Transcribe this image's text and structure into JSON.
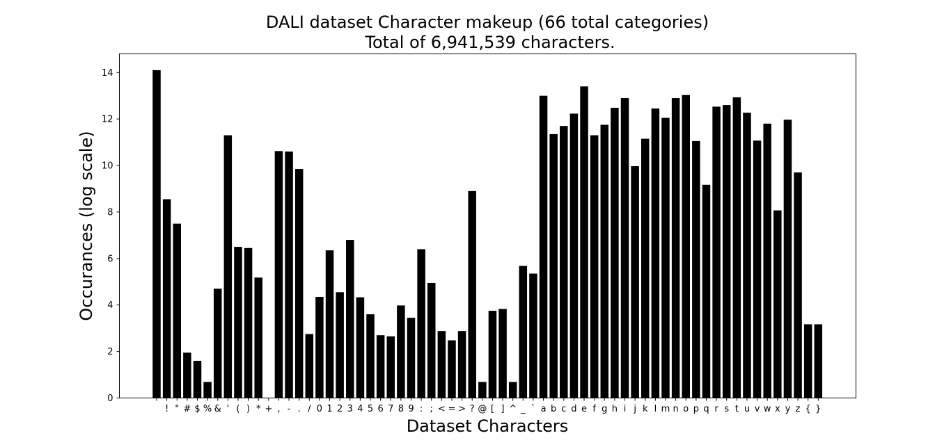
{
  "chart_data": {
    "type": "bar",
    "title": "DALI dataset Character makeup (66 total categories)",
    "subtitle": "Total of 6,941,539 characters.",
    "xlabel": "Dataset Characters",
    "ylabel": "Occurances (log scale)",
    "ylim": [
      0,
      14.8
    ],
    "yticks": [
      "0",
      "2",
      "4",
      "6",
      "8",
      "10",
      "12",
      "14"
    ],
    "categories": [
      " ",
      "!",
      "\"",
      "#",
      "$",
      "%",
      "&",
      "'",
      "(",
      ")",
      "*",
      "+",
      ",",
      "-",
      ".",
      "/",
      "0",
      "1",
      "2",
      "3",
      "4",
      "5",
      "6",
      "7",
      "8",
      "9",
      ":",
      ";",
      "<",
      "=",
      ">",
      "?",
      "@",
      "[",
      "]",
      "^",
      "_",
      "`",
      "a",
      "b",
      "c",
      "d",
      "e",
      "f",
      "g",
      "h",
      "i",
      "j",
      "k",
      "l",
      "m",
      "n",
      "o",
      "p",
      "q",
      "r",
      "s",
      "t",
      "u",
      "v",
      "w",
      "x",
      "y",
      "z",
      "{",
      "}"
    ],
    "values": [
      14.1,
      8.55,
      7.5,
      1.95,
      1.6,
      0.69,
      4.7,
      11.3,
      6.5,
      6.45,
      5.18,
      0,
      10.62,
      10.6,
      9.85,
      2.75,
      4.35,
      6.35,
      4.55,
      6.8,
      4.33,
      3.6,
      2.7,
      2.65,
      3.98,
      3.45,
      6.4,
      4.95,
      2.88,
      2.48,
      2.88,
      8.9,
      0.69,
      3.75,
      3.83,
      0.69,
      5.68,
      5.35,
      13.0,
      11.35,
      11.7,
      12.23,
      13.4,
      11.3,
      11.75,
      12.48,
      12.9,
      9.97,
      11.15,
      12.45,
      12.05,
      12.9,
      13.03,
      11.05,
      9.17,
      12.53,
      12.6,
      12.93,
      12.27,
      11.07,
      11.8,
      8.07,
      11.97,
      9.7,
      3.17,
      3.17
    ],
    "bar_color": "#000000",
    "grid": false,
    "legend": "none"
  }
}
